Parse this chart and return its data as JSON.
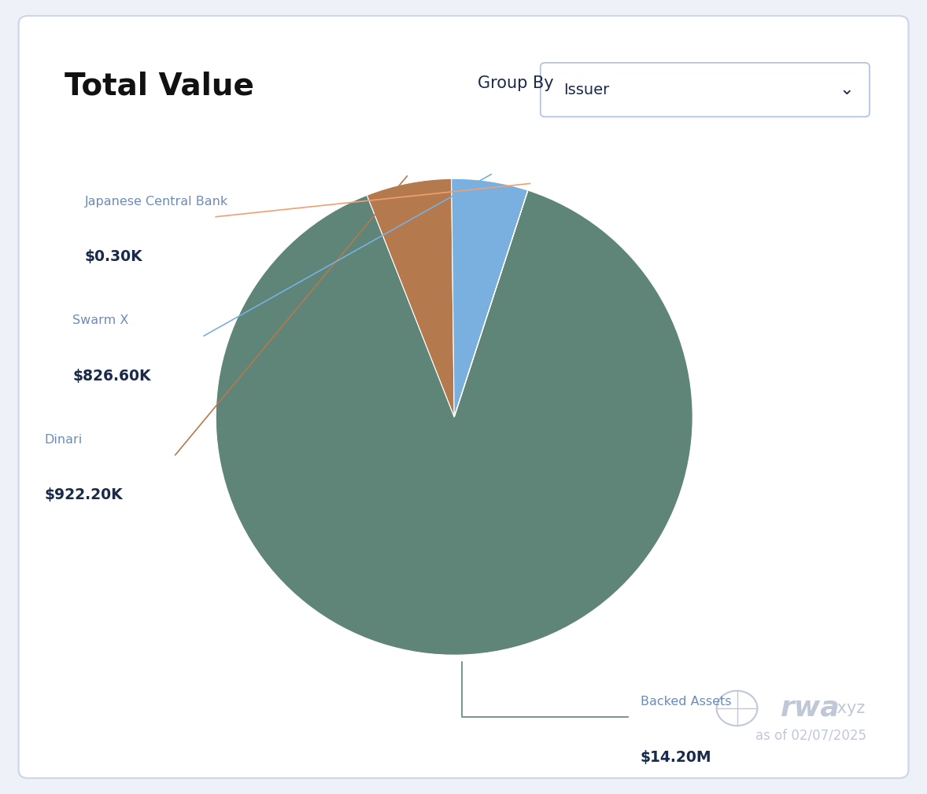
{
  "title": "Total Value",
  "group_by_label": "Group By",
  "group_by_value": "Issuer",
  "background_color": "#eef1f8",
  "card_color": "#ffffff",
  "slices": [
    {
      "label": "Backed Assets",
      "value": 14200000,
      "display": "$14.20M",
      "color": "#5f8478"
    },
    {
      "label": "Dinari",
      "value": 922200,
      "display": "$922.20K",
      "color": "#b5794e"
    },
    {
      "label": "Swarm X",
      "value": 826600,
      "display": "$826.60K",
      "color": "#7ab0e0"
    },
    {
      "label": "Japanese Central Bank",
      "value": 300,
      "display": "$0.30K",
      "color": "#f0a070"
    }
  ],
  "label_color": "#6b8cba",
  "value_color": "#1a2a4a",
  "line_color_map": {
    "Backed Assets": "#5f8478",
    "Dinari": "#b5794e",
    "Swarm X": "#7ab0e0",
    "Japanese Central Bank": "#f0a070"
  },
  "watermark_color": "#c0c8d8",
  "date_text": "as of 02/07/2025",
  "title_fontsize": 28,
  "title_fontweight": "bold"
}
